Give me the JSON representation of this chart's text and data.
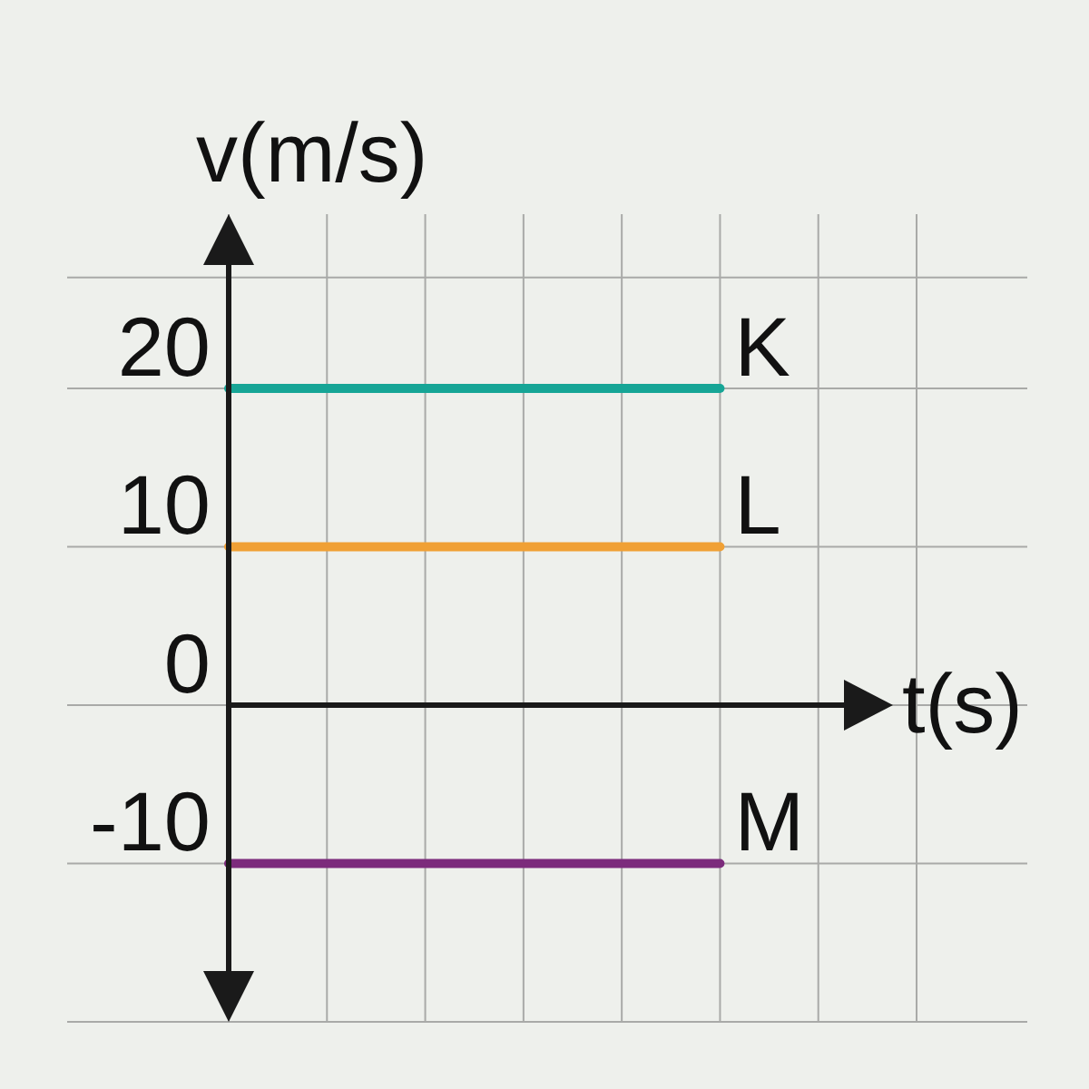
{
  "chart_data": {
    "type": "line",
    "xlabel": "t(s)",
    "ylabel": "v(m/s)",
    "categories": [
      null,
      null,
      null,
      null,
      null,
      null,
      null,
      null
    ],
    "series": [
      {
        "name": "K",
        "color": "#16a596",
        "values": [
          20,
          20,
          20,
          20,
          20,
          20,
          null,
          null
        ]
      },
      {
        "name": "L",
        "color": "#f0a035",
        "values": [
          10,
          10,
          10,
          10,
          10,
          10,
          null,
          null
        ]
      },
      {
        "name": "M",
        "color": "#7c2b7c",
        "values": [
          -10,
          -10,
          -10,
          -10,
          -10,
          -10,
          null,
          null
        ]
      }
    ],
    "ylim": [
      -20,
      31
    ],
    "yticks": [
      {
        "value": -20,
        "label": null
      },
      -10,
      0,
      10,
      20,
      {
        "value": 27,
        "label": null
      }
    ],
    "grid": true,
    "tick_labels": "y"
  }
}
